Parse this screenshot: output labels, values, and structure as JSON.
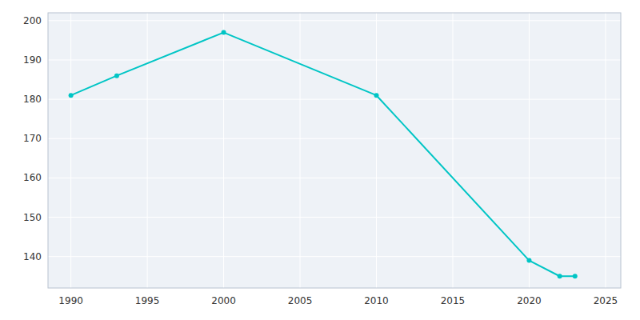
{
  "chart_data": {
    "type": "line",
    "x": [
      1990,
      1993,
      2000,
      2010,
      2020,
      2022,
      2023
    ],
    "values": [
      181,
      186,
      197,
      181,
      139,
      135,
      135
    ],
    "color": "#00c5c5",
    "marker": "circle",
    "xlim": [
      1988.5,
      2026
    ],
    "ylim": [
      132,
      202
    ],
    "xticks": [
      1990,
      1995,
      2000,
      2005,
      2010,
      2015,
      2020,
      2025
    ],
    "yticks": [
      140,
      150,
      160,
      170,
      180,
      190,
      200
    ],
    "grid": true
  }
}
